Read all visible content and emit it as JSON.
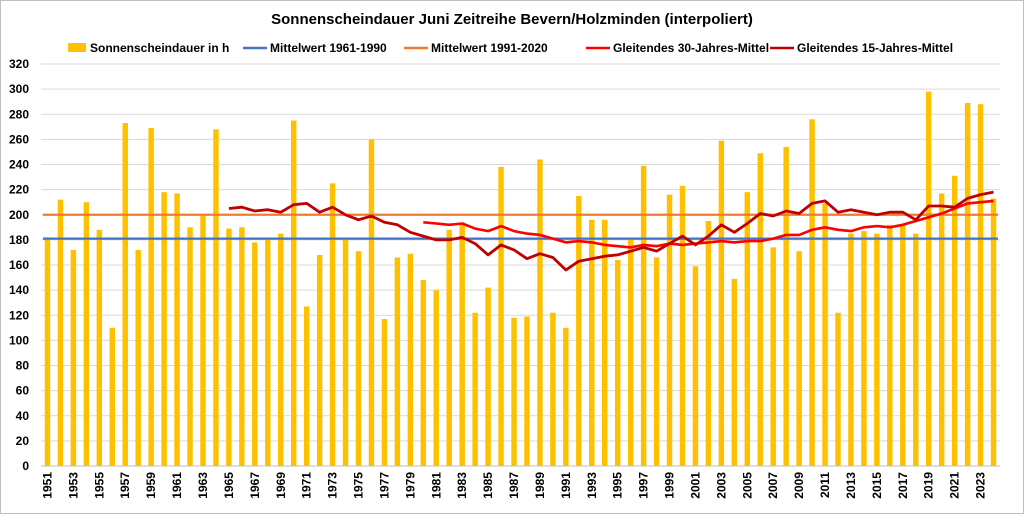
{
  "chart_data": {
    "type": "bar",
    "title": "Sonnenscheindauer Juni Zeitreihe Bevern/Holzminden (interpoliert)",
    "xlabel": "",
    "ylabel": "",
    "ylim": [
      0,
      320
    ],
    "ytick_step": 20,
    "grid": true,
    "legend_position": "top",
    "years": [
      1951,
      1952,
      1953,
      1954,
      1955,
      1956,
      1957,
      1958,
      1959,
      1960,
      1961,
      1962,
      1963,
      1964,
      1965,
      1966,
      1967,
      1968,
      1969,
      1970,
      1971,
      1972,
      1973,
      1974,
      1975,
      1976,
      1977,
      1978,
      1979,
      1980,
      1981,
      1982,
      1983,
      1984,
      1985,
      1986,
      1987,
      1988,
      1989,
      1990,
      1991,
      1992,
      1993,
      1994,
      1995,
      1996,
      1997,
      1998,
      1999,
      2000,
      2001,
      2002,
      2003,
      2004,
      2005,
      2006,
      2007,
      2008,
      2009,
      2010,
      2011,
      2012,
      2013,
      2014,
      2015,
      2016,
      2017,
      2018,
      2019,
      2020,
      2021,
      2022,
      2023,
      2024
    ],
    "x_tick_labels": [
      "1951",
      "1953",
      "1955",
      "1957",
      "1959",
      "1961",
      "1963",
      "1965",
      "1967",
      "1969",
      "1971",
      "1973",
      "1975",
      "1977",
      "1979",
      "1981",
      "1983",
      "1985",
      "1987",
      "1989",
      "1991",
      "1993",
      "1995",
      "1997",
      "1999",
      "2001",
      "2003",
      "2005",
      "2007",
      "2009",
      "2011",
      "2013",
      "2015",
      "2017",
      "2019",
      "2021",
      "2023"
    ],
    "series": [
      {
        "name": "Sonnenscheindauer in h",
        "kind": "bar",
        "color": "#FFC000",
        "values": [
          182,
          212,
          172,
          210,
          188,
          110,
          273,
          172,
          269,
          218,
          217,
          190,
          200,
          268,
          189,
          190,
          178,
          181,
          185,
          275,
          127,
          168,
          225,
          180,
          171,
          260,
          117,
          166,
          169,
          148,
          140,
          188,
          193,
          122,
          142,
          238,
          118,
          119,
          244,
          122,
          110,
          215,
          196,
          196,
          164,
          180,
          239,
          166,
          216,
          223,
          159,
          195,
          259,
          149,
          218,
          249,
          174,
          254,
          171,
          276,
          209,
          122,
          185,
          187,
          185,
          192,
          192,
          185,
          298,
          217,
          231,
          289,
          288,
          213
        ]
      },
      {
        "name": "Mittelwert 1961-1990",
        "kind": "hline",
        "color": "#4472C4",
        "value": 181
      },
      {
        "name": "Mittelwert 1991-2020",
        "kind": "hline",
        "color": "#ED7D31",
        "value": 200
      },
      {
        "name": "Gleitendes 30-Jahres-Mittel",
        "kind": "line",
        "color": "#FF0000",
        "start_year": 1980,
        "values": [
          194,
          193,
          192,
          193,
          189,
          187,
          191,
          187,
          185,
          184,
          181,
          178,
          179,
          178,
          176,
          175,
          174,
          176,
          175,
          177,
          176,
          177,
          178,
          179,
          178,
          179,
          179,
          181,
          184,
          184,
          188,
          190,
          188,
          187,
          190,
          191,
          190,
          192,
          195,
          198,
          201,
          205,
          209,
          210,
          211
        ]
      },
      {
        "name": "Gleitendes 15-Jahres-Mittel",
        "kind": "line",
        "color": "#C00000",
        "start_year": 1965,
        "values": [
          205,
          206,
          203,
          204,
          202,
          208,
          209,
          202,
          206,
          200,
          196,
          199,
          194,
          192,
          186,
          183,
          180,
          180,
          182,
          177,
          168,
          176,
          172,
          165,
          169,
          166,
          156,
          163,
          165,
          167,
          168,
          171,
          174,
          171,
          177,
          183,
          176,
          183,
          192,
          186,
          193,
          201,
          199,
          203,
          201,
          209,
          211,
          202,
          204,
          202,
          200,
          202,
          202,
          196,
          207,
          207,
          206,
          213,
          216,
          218
        ]
      }
    ]
  }
}
